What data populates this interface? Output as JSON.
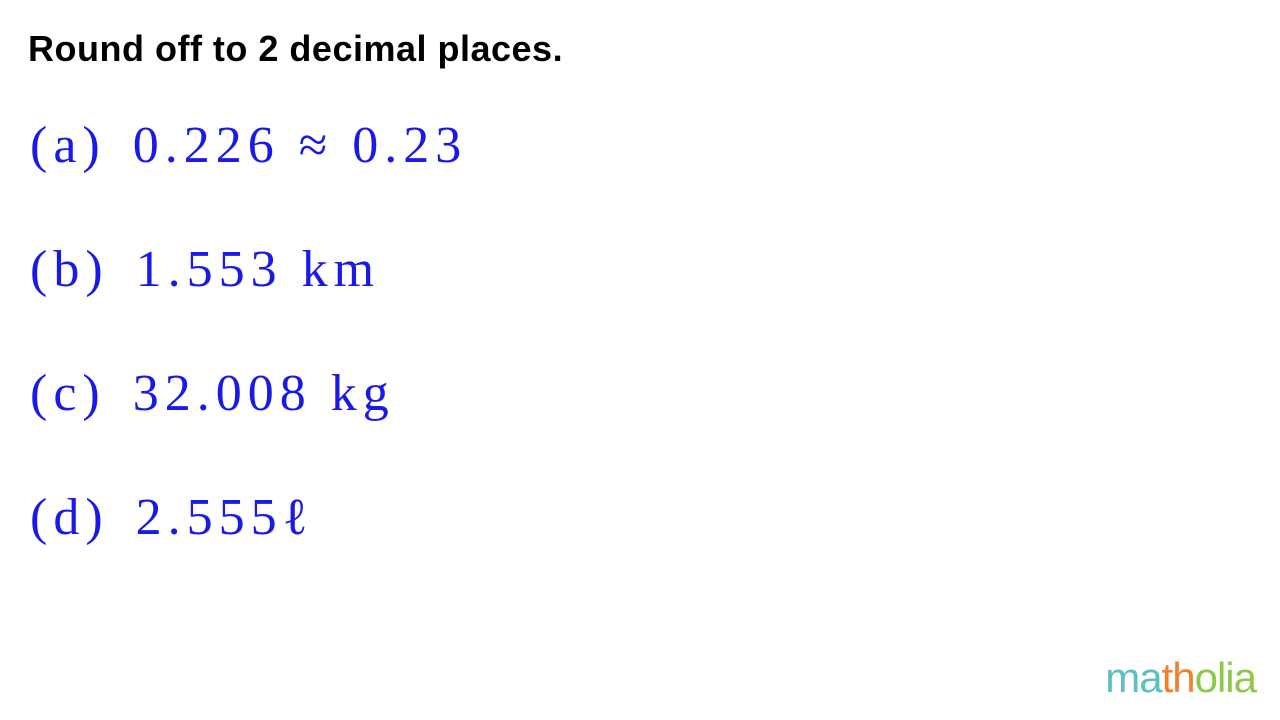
{
  "title": "Round off to 2 decimal places.",
  "title_color": "#000000",
  "title_fontsize": 36,
  "title_fontweight": 900,
  "handwriting_color": "#1a1ae6",
  "handwriting_fontsize": 52,
  "background_color": "#ffffff",
  "problems": [
    {
      "label": "(a)",
      "expression": "0.226 ≈ 0.23"
    },
    {
      "label": "(b)",
      "expression": "1.553 km"
    },
    {
      "label": "(c)",
      "expression": "32.008 kg"
    },
    {
      "label": "(d)",
      "expression": "2.555ℓ"
    }
  ],
  "logo": {
    "text_parts": [
      "ma",
      "th",
      "olia"
    ],
    "colors": [
      "#5bbfc4",
      "#f47f2a",
      "#8fc74a"
    ],
    "fontsize": 42
  }
}
